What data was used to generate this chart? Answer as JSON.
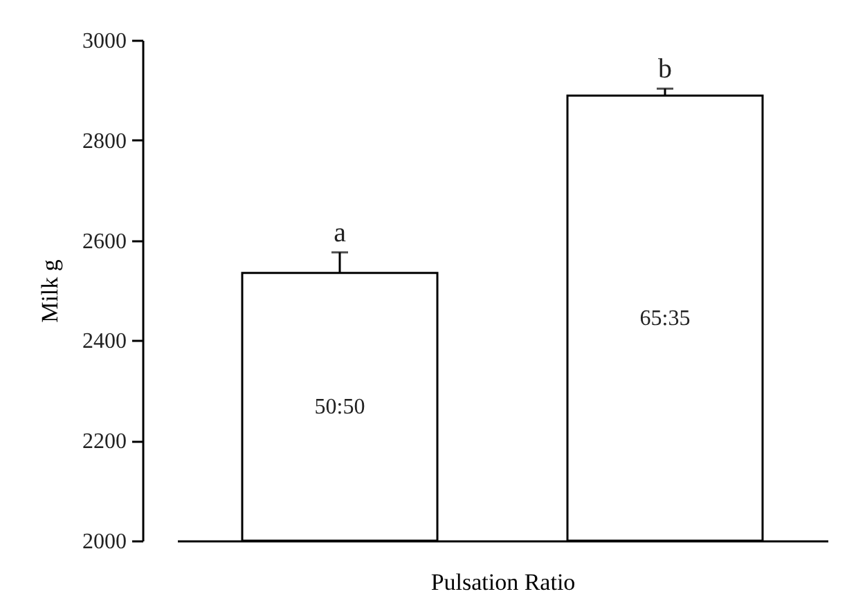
{
  "chart_data": {
    "type": "bar",
    "ylabel": "Milk g",
    "xlabel": "Pulsation Ratio",
    "categories": [
      "50:50",
      "65:35"
    ],
    "values": [
      2535,
      2889
    ],
    "errors": [
      41,
      14
    ],
    "color": "#ffffff",
    "ylim": [
      2000,
      3000
    ],
    "yticks": [
      2000,
      2200,
      2400,
      2600,
      2800,
      3000
    ],
    "annotations": [
      "a",
      "b"
    ],
    "tick_labels": "y",
    "grid": false
  }
}
